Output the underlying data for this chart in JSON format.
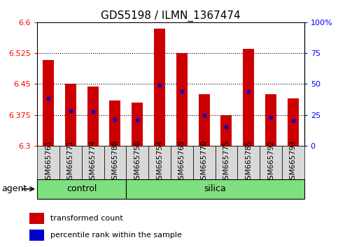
{
  "title": "GDS5198 / ILMN_1367474",
  "samples": [
    "GSM665761",
    "GSM665771",
    "GSM665774",
    "GSM665788",
    "GSM665750",
    "GSM665754",
    "GSM665769",
    "GSM665770",
    "GSM665775",
    "GSM665785",
    "GSM665792",
    "GSM665793"
  ],
  "n_control": 4,
  "n_silica": 8,
  "bar_bottom": 6.3,
  "transformed_counts": [
    6.508,
    6.45,
    6.443,
    6.41,
    6.405,
    6.585,
    6.525,
    6.425,
    6.375,
    6.535,
    6.425,
    6.415
  ],
  "percentile_values": [
    6.415,
    6.385,
    6.383,
    6.365,
    6.362,
    6.448,
    6.432,
    6.375,
    6.345,
    6.432,
    6.37,
    6.36
  ],
  "ylim_left": [
    6.3,
    6.6
  ],
  "ylim_right": [
    0,
    100
  ],
  "yticks_left": [
    6.3,
    6.375,
    6.45,
    6.525,
    6.6
  ],
  "yticks_right": [
    0,
    25,
    50,
    75,
    100
  ],
  "ytick_labels_left": [
    "6.3",
    "6.375",
    "6.45",
    "6.525",
    "6.6"
  ],
  "ytick_labels_right": [
    "0",
    "25",
    "50",
    "75",
    "100%"
  ],
  "bar_color": "#cc0000",
  "percentile_color": "#0000cc",
  "control_color": "#7FE07F",
  "silica_color": "#7FE07F",
  "sample_box_color": "#d8d8d8",
  "agent_label": "agent",
  "control_label": "control",
  "silica_label": "silica",
  "legend_bar_label": "transformed count",
  "legend_pct_label": "percentile rank within the sample",
  "title_fontsize": 11,
  "tick_fontsize": 8,
  "label_fontsize": 7.5,
  "agent_fontsize": 9,
  "bar_width": 0.5
}
